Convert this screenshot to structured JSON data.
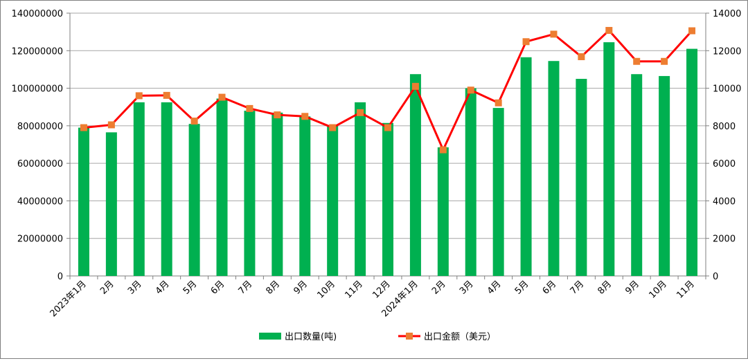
{
  "chart_data": {
    "type": "bar+line",
    "categories": [
      "2023年1月",
      "2月",
      "3月",
      "4月",
      "5月",
      "6月",
      "7月",
      "8月",
      "9月",
      "10月",
      "11月",
      "12月",
      "2024年1月",
      "2月",
      "3月",
      "4月",
      "5月",
      "6月",
      "7月",
      "8月",
      "9月",
      "10月",
      "11月"
    ],
    "series": [
      {
        "name": "出口数量(吨)",
        "type": "bar",
        "axis": "left",
        "color": "#00b050",
        "values": [
          79000000,
          76500000,
          92500000,
          92500000,
          81000000,
          94500000,
          88000000,
          87000000,
          85000000,
          80000000,
          92500000,
          81500000,
          107500000,
          68500000,
          100000000,
          89500000,
          116500000,
          114500000,
          105000000,
          124500000,
          107500000,
          106500000,
          121000000
        ]
      },
      {
        "name": "出口金额（美元）",
        "type": "line",
        "axis": "right",
        "color": "#ff0000",
        "marker_color": "#ed7d31",
        "values": [
          7900,
          8050,
          9600,
          9620,
          8250,
          9520,
          8920,
          8580,
          8500,
          7900,
          8700,
          7900,
          10100,
          6720,
          9900,
          9220,
          12480,
          12880,
          11680,
          13080,
          11430,
          11430,
          13060
        ]
      }
    ],
    "ylim_left": [
      0,
      140000000
    ],
    "ylim_right": [
      0,
      14000
    ],
    "yticks_left": [
      "0",
      "20000000",
      "40000000",
      "60000000",
      "80000000",
      "100000000",
      "120000000",
      "140000000"
    ],
    "yticks_right": [
      "0",
      "2000",
      "4000",
      "6000",
      "8000",
      "10000",
      "12000",
      "14000"
    ],
    "grid": true,
    "legend_position": "bottom"
  }
}
